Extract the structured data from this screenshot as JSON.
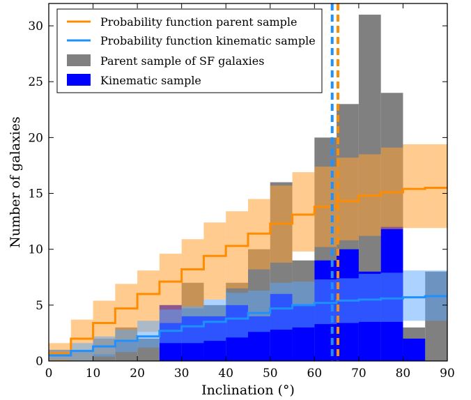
{
  "chart_data": {
    "type": "bar",
    "title": "",
    "xlabel": "Inclination (°)",
    "ylabel": "Number of galaxies",
    "xlim": [
      0,
      90
    ],
    "ylim": [
      0,
      32
    ],
    "xticks": [
      0,
      10,
      20,
      30,
      40,
      50,
      60,
      70,
      80,
      90
    ],
    "yticks": [
      0,
      5,
      10,
      15,
      20,
      25,
      30
    ],
    "bin_edges": [
      0,
      5,
      10,
      15,
      20,
      25,
      30,
      35,
      40,
      45,
      50,
      55,
      60,
      65,
      70,
      75,
      80,
      85,
      90
    ],
    "legend_position": "top-left",
    "series": [
      {
        "name": "Parent sample of SF galaxies",
        "kind": "histogram",
        "color": "#808080",
        "values": [
          1,
          1,
          2,
          3,
          2,
          5,
          7,
          5,
          7,
          10,
          16,
          9,
          20,
          23,
          31,
          24,
          3,
          8
        ]
      },
      {
        "name": "Kinematic sample",
        "kind": "histogram",
        "color": "#0000ff",
        "values": [
          0,
          0,
          0,
          0,
          0,
          5,
          4,
          4,
          5,
          4,
          6,
          5,
          9,
          10,
          8,
          12,
          2,
          0
        ]
      },
      {
        "name": "Probability function parent sample",
        "kind": "step",
        "color": "#ff8c00",
        "band_color": "#ffa033",
        "values": [
          0.7,
          2.0,
          3.4,
          4.7,
          6.0,
          7.1,
          8.2,
          9.4,
          10.3,
          11.4,
          12.3,
          13.1,
          13.8,
          14.3,
          14.8,
          15.1,
          15.4,
          15.5
        ],
        "lower": [
          0,
          0,
          0.6,
          1.7,
          2.6,
          3.4,
          4.7,
          5.5,
          6.5,
          8.2,
          8.8,
          9.8,
          10.2,
          10.8,
          11.2,
          11.8,
          11.9,
          11.9
        ],
        "upper": [
          1.6,
          3.7,
          5.4,
          6.9,
          8.1,
          9.6,
          10.9,
          12.4,
          13.4,
          14.5,
          15.7,
          16.9,
          17.4,
          18.2,
          18.5,
          19.1,
          19.4,
          19.4
        ]
      },
      {
        "name": "Probability function kinematic sample",
        "kind": "step",
        "color": "#1e90ff",
        "band_color": "#5aa8ff",
        "values": [
          0.5,
          0.9,
          1.3,
          1.8,
          2.2,
          2.7,
          3.1,
          3.5,
          3.8,
          4.3,
          4.7,
          5.0,
          5.2,
          5.4,
          5.5,
          5.6,
          5.7,
          5.8
        ],
        "lower": [
          0.1,
          0,
          0.4,
          0.8,
          1.2,
          1.6,
          1.6,
          1.8,
          2.1,
          2.6,
          2.8,
          3.0,
          3.3,
          3.4,
          3.5,
          3.5,
          3.6,
          3.6
        ],
        "upper": [
          1.0,
          1.6,
          2.2,
          2.8,
          3.6,
          4.6,
          4.9,
          5.5,
          6.1,
          6.3,
          7.0,
          7.1,
          7.3,
          7.4,
          7.8,
          7.9,
          8.1,
          8.1
        ]
      }
    ],
    "vertical_lines": [
      {
        "x": 64,
        "color": "#1e90ff",
        "style": "dashed"
      },
      {
        "x": 65.3,
        "color": "#ff8c00",
        "style": "dashed"
      }
    ],
    "legend": [
      {
        "label": "Probability function parent sample",
        "kind": "line",
        "color": "#ff8c00"
      },
      {
        "label": "Probability function kinematic sample",
        "kind": "line",
        "color": "#1e90ff"
      },
      {
        "label": "Parent sample of SF galaxies",
        "kind": "patch",
        "color": "#808080"
      },
      {
        "label": "Kinematic sample",
        "kind": "patch",
        "color": "#0000ff"
      }
    ]
  }
}
